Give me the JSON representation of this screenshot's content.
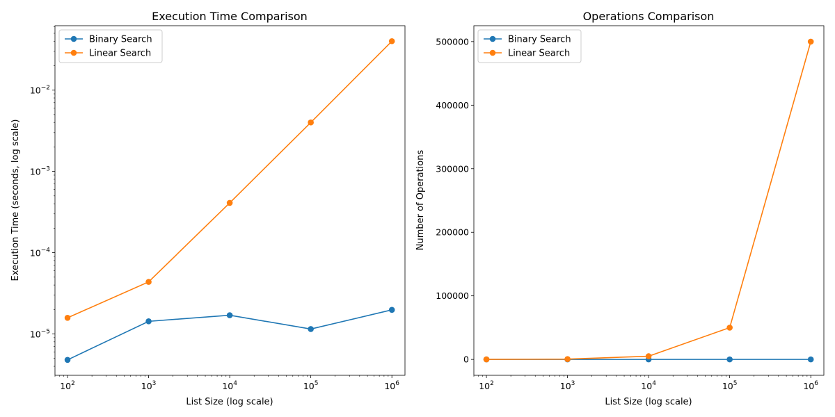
{
  "chart_data": [
    {
      "type": "line",
      "title": "Execution Time Comparison",
      "xlabel": "List Size (log scale)",
      "ylabel": "Execution Time (seconds, log scale)",
      "xscale": "log",
      "yscale": "log",
      "x": [
        100,
        1000,
        10000,
        100000,
        1000000
      ],
      "x_tick_labels": [
        {
          "base": "10",
          "exp": "2"
        },
        {
          "base": "10",
          "exp": "3"
        },
        {
          "base": "10",
          "exp": "4"
        },
        {
          "base": "10",
          "exp": "5"
        },
        {
          "base": "10",
          "exp": "6"
        }
      ],
      "y_tick_labels": [
        {
          "base": "10",
          "exp": "−5",
          "value": 1e-05
        },
        {
          "base": "10",
          "exp": "−4",
          "value": 0.0001
        },
        {
          "base": "10",
          "exp": "−3",
          "value": 0.001
        },
        {
          "base": "10",
          "exp": "−2",
          "value": 0.01
        }
      ],
      "xlim": [
        70,
        1450000
      ],
      "ylim": [
        3.1e-06,
        0.062
      ],
      "grid": false,
      "legend": "upper-left",
      "series": [
        {
          "name": "Binary Search",
          "color": "#1f77b4",
          "values": [
            4.8e-06,
            1.43e-05,
            1.7e-05,
            1.15e-05,
            1.98e-05
          ]
        },
        {
          "name": "Linear Search",
          "color": "#ff7f0e",
          "values": [
            1.58e-05,
            4.37e-05,
            0.00041,
            0.004,
            0.04
          ]
        }
      ]
    },
    {
      "type": "line",
      "title": "Operations Comparison",
      "xlabel": "List Size (log scale)",
      "ylabel": "Number of Operations",
      "xscale": "log",
      "yscale": "linear",
      "x": [
        100,
        1000,
        10000,
        100000,
        1000000
      ],
      "x_tick_labels": [
        {
          "base": "10",
          "exp": "2"
        },
        {
          "base": "10",
          "exp": "3"
        },
        {
          "base": "10",
          "exp": "4"
        },
        {
          "base": "10",
          "exp": "5"
        },
        {
          "base": "10",
          "exp": "6"
        }
      ],
      "y_tick_labels": [
        {
          "label": "0",
          "value": 0
        },
        {
          "label": "100000",
          "value": 100000
        },
        {
          "label": "200000",
          "value": 200000
        },
        {
          "label": "300000",
          "value": 300000
        },
        {
          "label": "400000",
          "value": 400000
        },
        {
          "label": "500000",
          "value": 500000
        }
      ],
      "xlim": [
        70,
        1450000
      ],
      "ylim": [
        -25000,
        525000
      ],
      "grid": false,
      "legend": "upper-left",
      "series": [
        {
          "name": "Binary Search",
          "color": "#1f77b4",
          "values": [
            7,
            10,
            14,
            17,
            20
          ]
        },
        {
          "name": "Linear Search",
          "color": "#ff7f0e",
          "values": [
            50,
            500,
            5000,
            50000,
            500000
          ]
        }
      ]
    }
  ]
}
